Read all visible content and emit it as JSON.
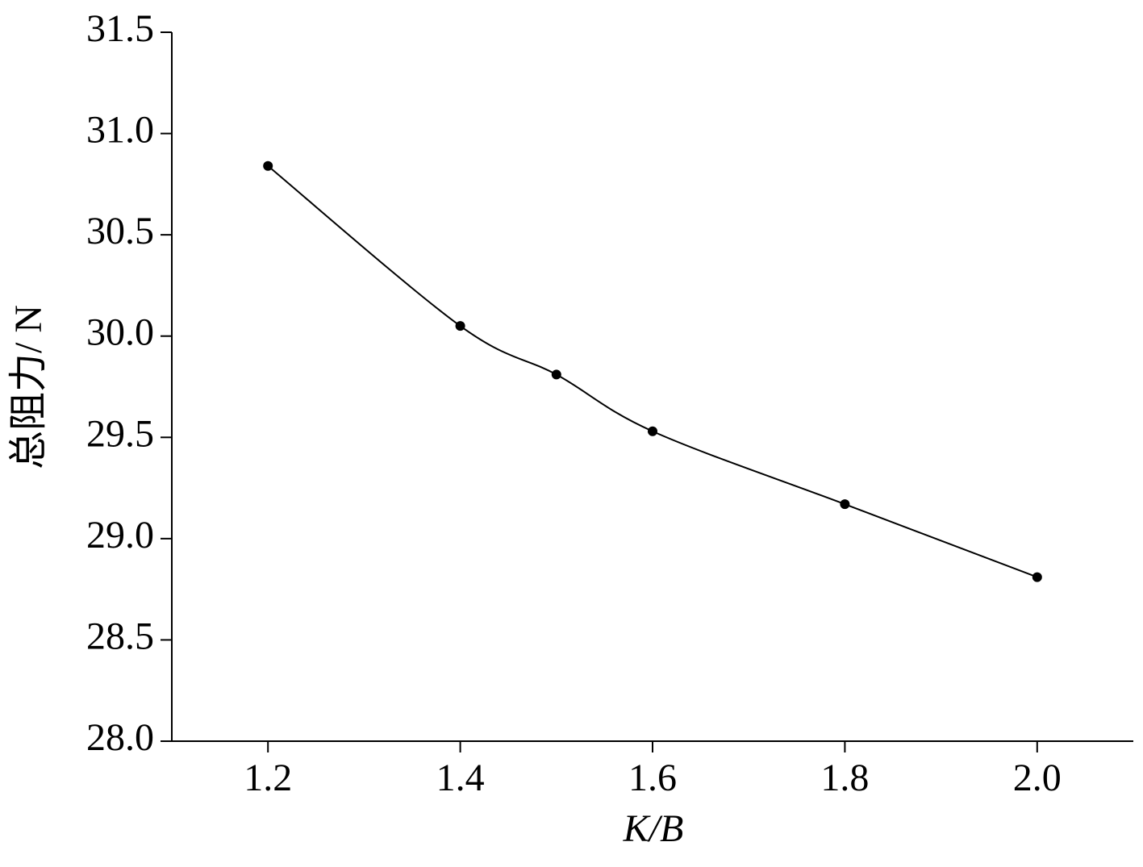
{
  "chart_data": {
    "type": "line",
    "x_label": "K/B",
    "y_label": "总阻力/ N",
    "x": [
      1.2,
      1.4,
      1.5,
      1.6,
      1.8,
      2.0
    ],
    "series": [
      {
        "color": "#000000",
        "values": [
          30.84,
          30.05,
          29.81,
          29.53,
          29.17,
          28.81
        ]
      }
    ],
    "xlim": [
      1.1,
      2.1
    ],
    "xticks": [
      1.2,
      1.4,
      1.6,
      1.8,
      {
        "value": 2.0,
        "label": "2.0"
      }
    ],
    "ylim": [
      28.0,
      31.5
    ],
    "yticks": [
      {
        "value": 28.0,
        "label": "28.0"
      },
      28.5,
      {
        "value": 29.0,
        "label": "29.0"
      },
      29.5,
      {
        "value": 30.0,
        "label": "30.0"
      },
      30.5,
      {
        "value": 31.0,
        "label": "31.0"
      },
      31.5
    ]
  }
}
